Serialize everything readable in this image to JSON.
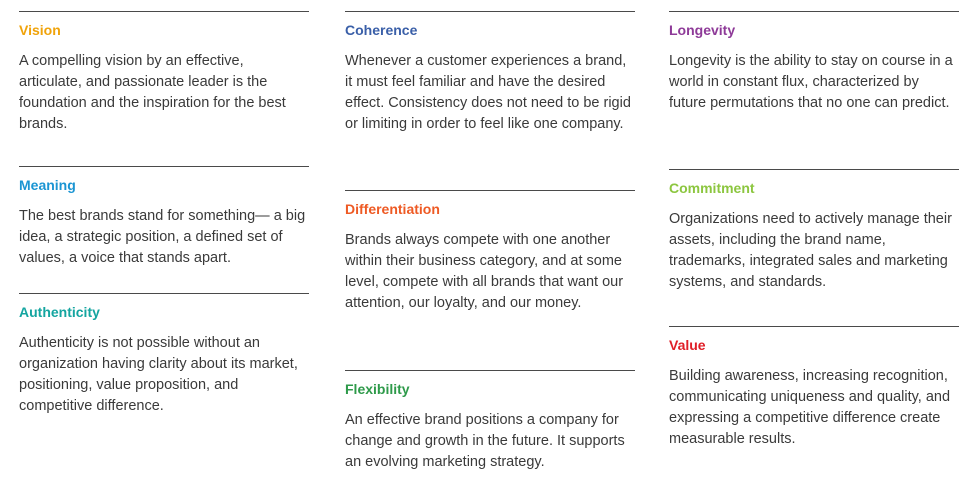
{
  "columns": [
    {
      "blocks": [
        {
          "title": "Vision",
          "color": "#f0a30a",
          "text": "A compelling vision by an effective, articulate, and passionate leader is the foundation and the inspiration for the best brands."
        },
        {
          "title": "Meaning",
          "color": "#1b95d3",
          "text": "The best brands stand for something— a big idea, a strategic position, a defined set of values, a voice that stands apart."
        },
        {
          "title": "Authenticity",
          "color": "#14a5a0",
          "text": "Authenticity is not possible without an organization having clarity about its market, positioning, value proposition, and competitive difference."
        }
      ]
    },
    {
      "blocks": [
        {
          "title": "Coherence",
          "color": "#3a5fa8",
          "text": "Whenever a customer experiences a brand, it must feel familiar and have the desired effect. Consistency does not need to be rigid or limiting in order to feel like one company."
        },
        {
          "title": "Differentiation",
          "color": "#ee5a24",
          "text": "Brands always compete with one another within their business category, and at some level, compete with all brands that want our attention, our loyalty, and our money."
        },
        {
          "title": "Flexibility",
          "color": "#2e9a4a",
          "text": "An effective brand positions a company for change and growth in the future. It supports an evolving marketing strategy."
        }
      ]
    },
    {
      "blocks": [
        {
          "title": "Longevity",
          "color": "#8e3a98",
          "text": "Longevity is the ability to stay on course in a world in constant flux, characterized by future permutations that no one can predict."
        },
        {
          "title": "Commitment",
          "color": "#8cc63f",
          "text": "Organizations need to actively manage their assets, including the brand name, trademarks, integrated sales and marketing systems, and standards."
        },
        {
          "title": "Value",
          "color": "#e01e27",
          "text": "Building awareness, increasing recognition, communicating uniqueness and quality, and expressing a competitive difference create measurable results."
        }
      ]
    }
  ]
}
